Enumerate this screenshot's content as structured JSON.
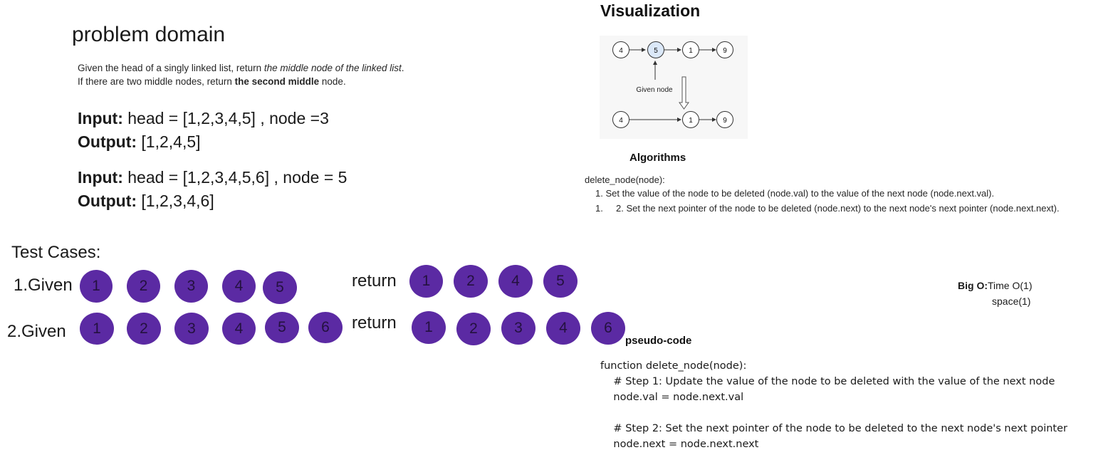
{
  "problem": {
    "title": "problem domain",
    "desc1_a": "Given the head of a singly linked list, return ",
    "desc1_b": "the middle node of the linked list",
    "desc1_c": ".",
    "desc2_a": "If there are two middle nodes, return ",
    "desc2_b": "the second middle",
    "desc2_c": " node.",
    "ex1_input_label": "Input:",
    "ex1_input_value": " head = [1,2,3,4,5] , node =3",
    "ex1_output_label": "Output:",
    "ex1_output_value": " [1,2,4,5]",
    "ex2_input_label": "Input:",
    "ex2_input_value": " head = [1,2,3,4,5,6] , node = 5",
    "ex2_output_label": "Output:",
    "ex2_output_value": " [1,2,3,4,6]"
  },
  "visualization": {
    "title": "Visualization",
    "top_row": [
      "4",
      "5",
      "1",
      "9"
    ],
    "bottom_row": [
      "4",
      "1",
      "9"
    ],
    "given_node_label": "Given node",
    "highlight_color": "#dbe8f8"
  },
  "algorithms": {
    "title": "Algorithms",
    "signature": "delete_node(node):",
    "step1": "1. Set the value of the node to be deleted (node.val) to the value of the next node (node.next.val).",
    "step2_num": "1.",
    "step2": "2. Set the next pointer of the node to be deleted (node.next) to the next node's next pointer (node.next.next)."
  },
  "test_cases": {
    "title": "Test Cases:",
    "case1_label": "1.Given",
    "case1_given": [
      "1",
      "2",
      "3",
      "4",
      "5"
    ],
    "case1_return_label": "return",
    "case1_return": [
      "1",
      "2",
      "4",
      "5"
    ],
    "case2_label": "2.Given",
    "case2_given": [
      "1",
      "2",
      "3",
      "4",
      "5",
      "6"
    ],
    "case2_return_label": "return",
    "case2_return": [
      "1",
      "2",
      "3",
      "4",
      "6"
    ],
    "circle_color": "#5b2aa3"
  },
  "big_o": {
    "label": "Big O:",
    "time": "Time O(1)",
    "space": "space(1)"
  },
  "pseudo": {
    "title": "pseudo-code",
    "lines": [
      "function delete_node(node):",
      "    # Step 1: Update the value of the node to be deleted with the value of the next node",
      "    node.val = node.next.val",
      "",
      "    # Step 2: Set the next pointer of the node to be deleted to the next node's next pointer",
      "    node.next = node.next.next"
    ]
  }
}
